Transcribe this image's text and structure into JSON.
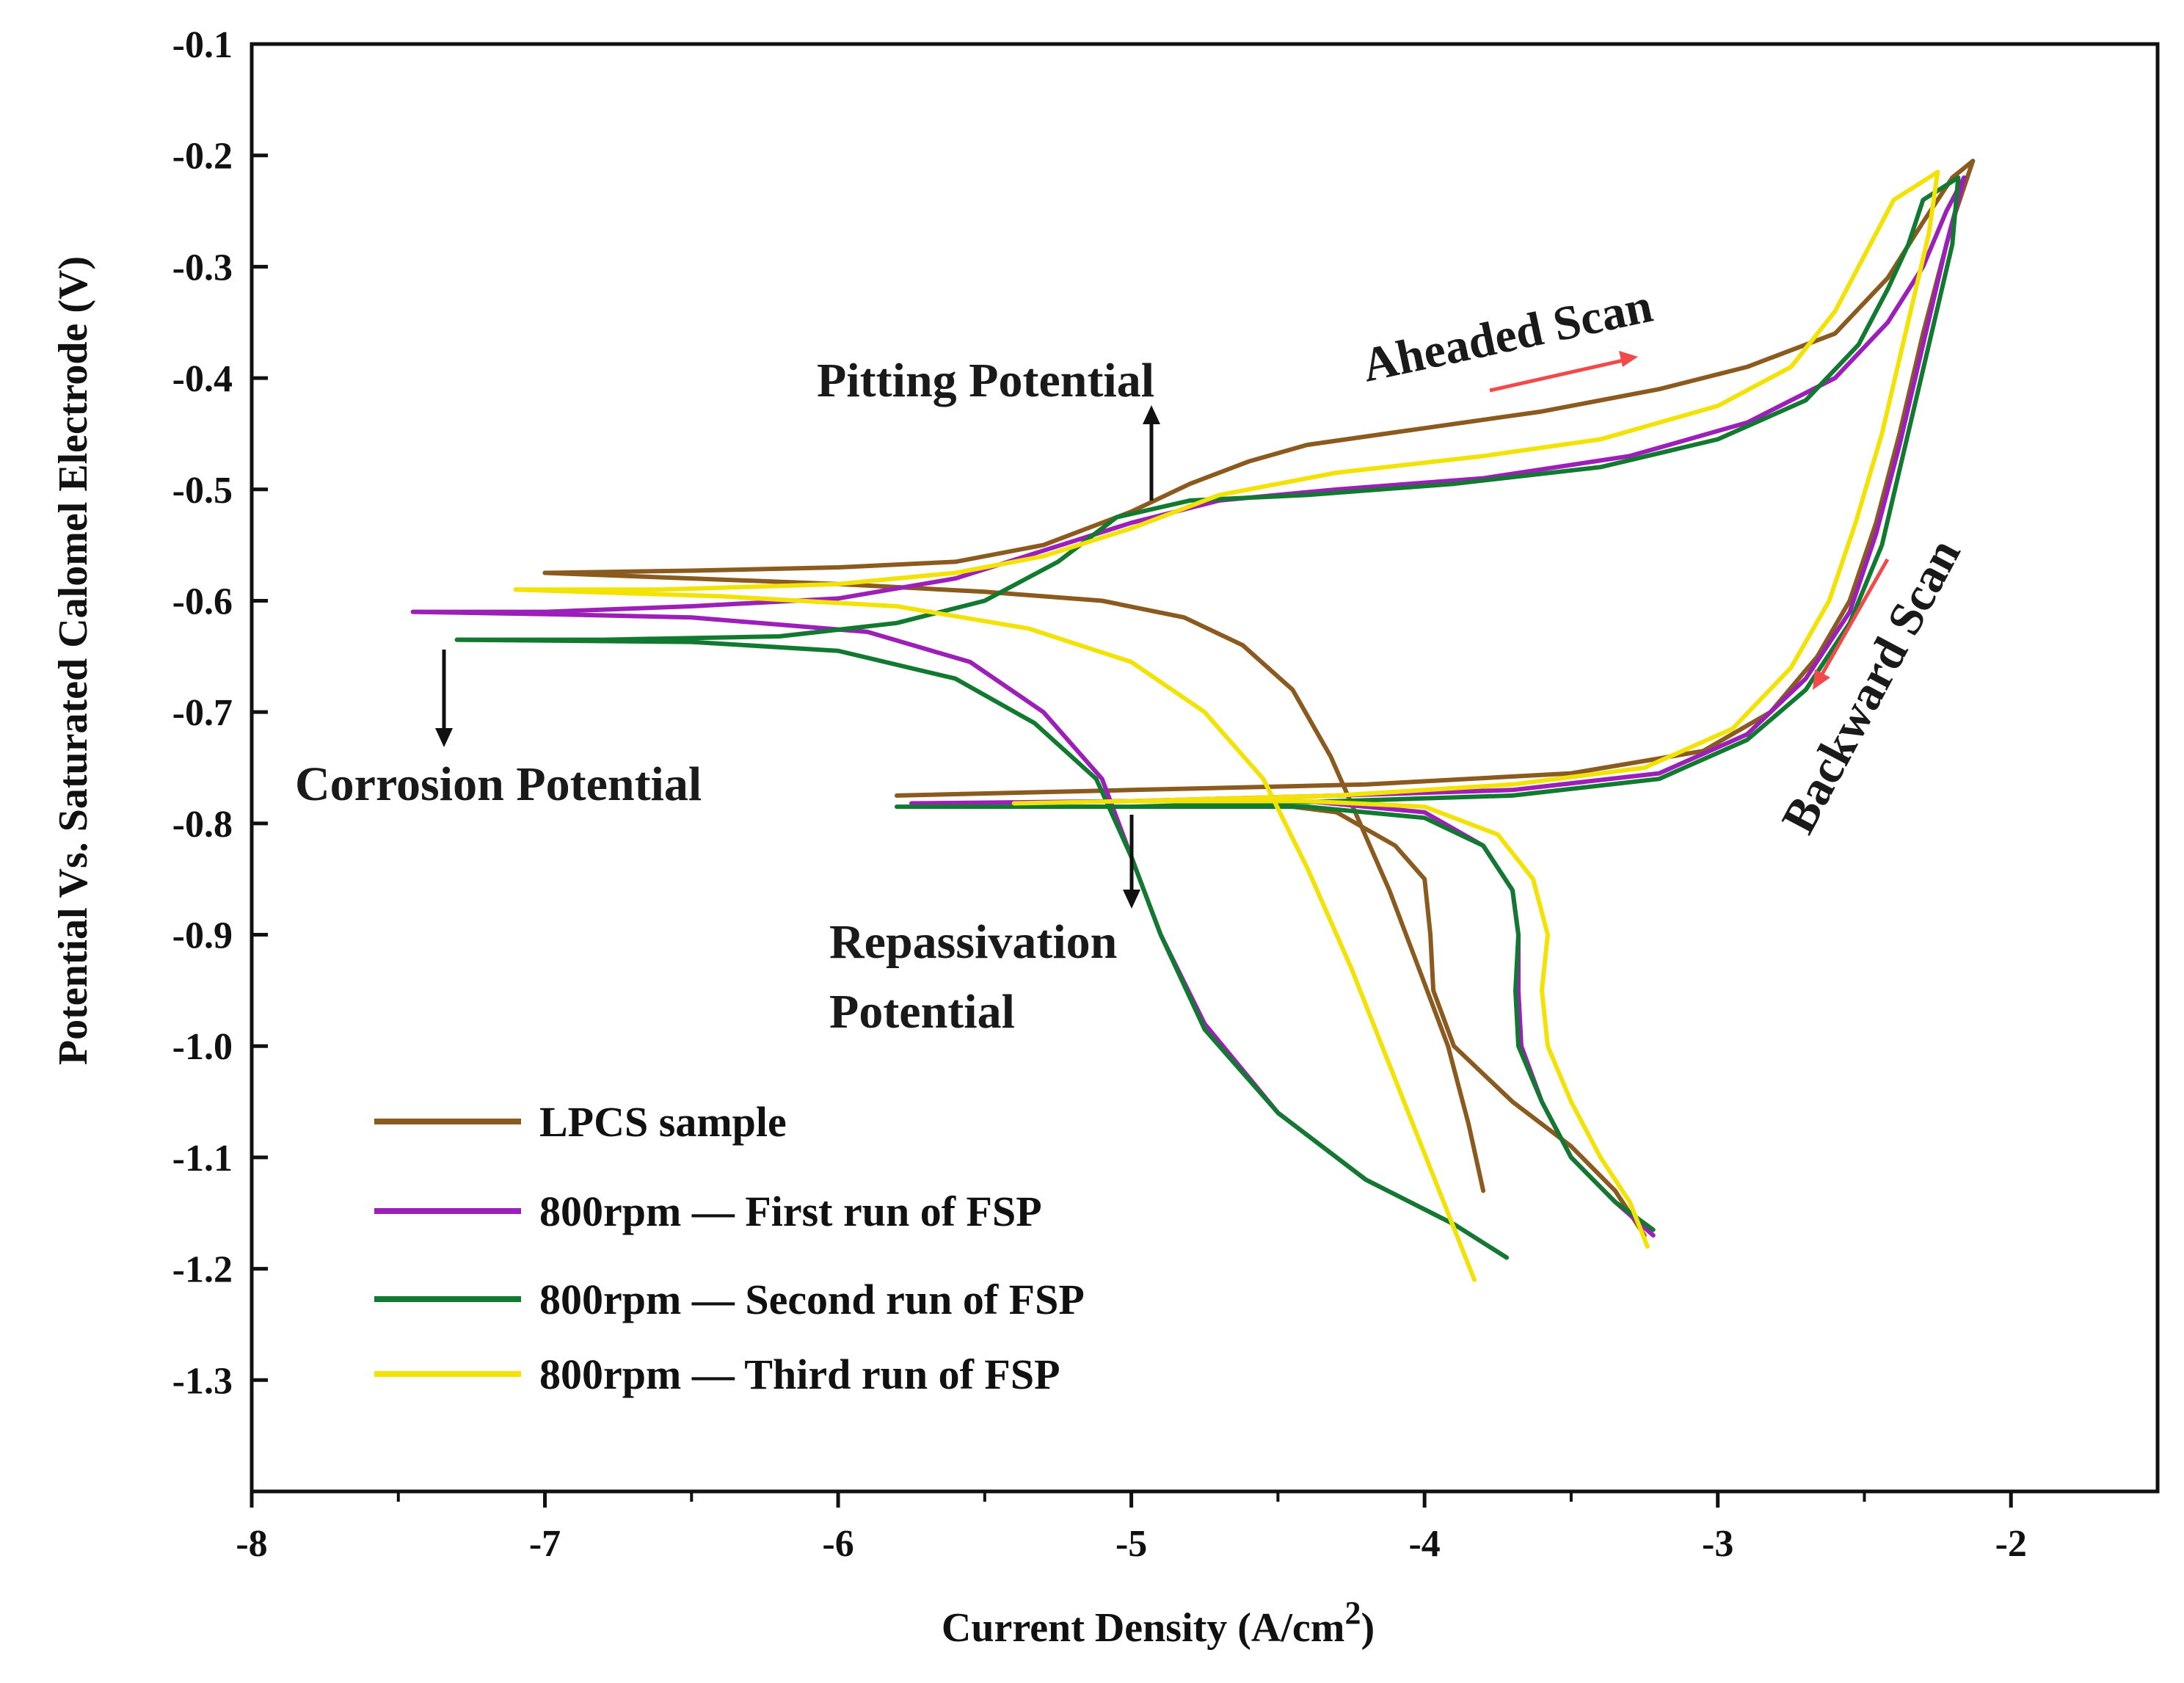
{
  "chart_data": {
    "type": "line",
    "xlabel": "Current Density (A/cm",
    "xlabel_sup": "2",
    "xlabel_end": ")",
    "ylabel": "Potential Vs. Saturated Calomel Electrode (V)",
    "xlim": [
      -8,
      -1.5
    ],
    "ylim": [
      -1.4,
      -0.1
    ],
    "x_ticks": [
      -8,
      -7,
      -6,
      -5,
      -4,
      -3,
      -2
    ],
    "x_tick_labels": [
      "-8",
      "-7",
      "-6",
      "-5",
      "-4",
      "-3",
      "-2"
    ],
    "y_ticks": [
      -0.1,
      -0.2,
      -0.3,
      -0.4,
      -0.5,
      -0.6,
      -0.7,
      -0.8,
      -0.9,
      -1.0,
      -1.1,
      -1.2,
      -1.3
    ],
    "y_tick_labels": [
      "-0.1",
      "-0.2",
      "-0.3",
      "-0.4",
      "-0.5",
      "-0.6",
      "-0.7",
      "-0.8",
      "-0.9",
      "-1.0",
      "-1.1",
      "-1.2",
      "-1.3"
    ],
    "grid": false,
    "legend_position": "bottom-left",
    "annotations": {
      "pitting": "Pitting Potential",
      "ahead_scan": "Aheaded Scan",
      "backward_scan": "Backward Scan",
      "corrosion": "Corrosion Potential",
      "repass_1": "Repassivation",
      "repass_2": "Potential"
    },
    "series": [
      {
        "name": "LPCS sample",
        "color": "#8B5A1E",
        "cathodic": [
          [
            -3.8,
            -1.13
          ],
          [
            -3.85,
            -1.07
          ],
          [
            -3.92,
            -1.0
          ],
          [
            -4.02,
            -0.93
          ],
          [
            -4.12,
            -0.86
          ],
          [
            -4.22,
            -0.8
          ],
          [
            -4.32,
            -0.74
          ],
          [
            -4.45,
            -0.68
          ],
          [
            -4.62,
            -0.64
          ],
          [
            -4.82,
            -0.615
          ],
          [
            -5.1,
            -0.6
          ],
          [
            -5.5,
            -0.592
          ],
          [
            -6.0,
            -0.585
          ],
          [
            -6.5,
            -0.58
          ],
          [
            -7.0,
            -0.575
          ]
        ],
        "anodic": [
          [
            -7.0,
            -0.575
          ],
          [
            -6.5,
            -0.573
          ],
          [
            -6.0,
            -0.57
          ],
          [
            -5.6,
            -0.565
          ],
          [
            -5.3,
            -0.55
          ],
          [
            -5.0,
            -0.52
          ],
          [
            -4.8,
            -0.495
          ],
          [
            -4.6,
            -0.475
          ],
          [
            -4.4,
            -0.46
          ],
          [
            -4.0,
            -0.445
          ],
          [
            -3.6,
            -0.43
          ],
          [
            -3.2,
            -0.41
          ],
          [
            -2.9,
            -0.39
          ],
          [
            -2.6,
            -0.36
          ],
          [
            -2.42,
            -0.31
          ],
          [
            -2.3,
            -0.26
          ],
          [
            -2.2,
            -0.22
          ],
          [
            -2.13,
            -0.205
          ]
        ],
        "reverse": [
          [
            -2.13,
            -0.205
          ],
          [
            -2.2,
            -0.26
          ],
          [
            -2.3,
            -0.36
          ],
          [
            -2.38,
            -0.45
          ],
          [
            -2.46,
            -0.53
          ],
          [
            -2.55,
            -0.6
          ],
          [
            -2.66,
            -0.65
          ],
          [
            -2.82,
            -0.7
          ],
          [
            -3.05,
            -0.735
          ],
          [
            -3.5,
            -0.755
          ],
          [
            -4.2,
            -0.765
          ],
          [
            -5.0,
            -0.77
          ],
          [
            -5.8,
            -0.775
          ]
        ],
        "tail": [
          [
            -5.0,
            -0.78
          ],
          [
            -4.6,
            -0.78
          ],
          [
            -4.3,
            -0.79
          ],
          [
            -4.1,
            -0.82
          ],
          [
            -4.0,
            -0.85
          ],
          [
            -3.98,
            -0.9
          ],
          [
            -3.97,
            -0.95
          ],
          [
            -3.9,
            -1.0
          ],
          [
            -3.7,
            -1.05
          ],
          [
            -3.5,
            -1.09
          ],
          [
            -3.35,
            -1.13
          ],
          [
            -3.25,
            -1.17
          ]
        ]
      },
      {
        "name": "800rpm — First run of FSP",
        "color": "#9B1FB8",
        "cathodic": [
          [
            -3.72,
            -1.19
          ],
          [
            -3.9,
            -1.16
          ],
          [
            -4.2,
            -1.12
          ],
          [
            -4.5,
            -1.06
          ],
          [
            -4.75,
            -0.98
          ],
          [
            -4.9,
            -0.9
          ],
          [
            -5.0,
            -0.83
          ],
          [
            -5.1,
            -0.76
          ],
          [
            -5.3,
            -0.7
          ],
          [
            -5.55,
            -0.655
          ],
          [
            -5.9,
            -0.628
          ],
          [
            -6.5,
            -0.615
          ],
          [
            -7.0,
            -0.612
          ],
          [
            -7.45,
            -0.61
          ]
        ],
        "anodic": [
          [
            -7.45,
            -0.61
          ],
          [
            -7.0,
            -0.61
          ],
          [
            -6.5,
            -0.605
          ],
          [
            -6.0,
            -0.598
          ],
          [
            -5.6,
            -0.58
          ],
          [
            -5.3,
            -0.555
          ],
          [
            -5.0,
            -0.53
          ],
          [
            -4.7,
            -0.51
          ],
          [
            -4.3,
            -0.5
          ],
          [
            -3.8,
            -0.49
          ],
          [
            -3.3,
            -0.47
          ],
          [
            -2.9,
            -0.44
          ],
          [
            -2.6,
            -0.4
          ],
          [
            -2.42,
            -0.35
          ],
          [
            -2.3,
            -0.3
          ],
          [
            -2.22,
            -0.25
          ],
          [
            -2.16,
            -0.22
          ]
        ],
        "reverse": [
          [
            -2.16,
            -0.22
          ],
          [
            -2.22,
            -0.28
          ],
          [
            -2.3,
            -0.37
          ],
          [
            -2.38,
            -0.46
          ],
          [
            -2.46,
            -0.54
          ],
          [
            -2.55,
            -0.61
          ],
          [
            -2.7,
            -0.67
          ],
          [
            -2.9,
            -0.72
          ],
          [
            -3.2,
            -0.755
          ],
          [
            -3.7,
            -0.77
          ],
          [
            -4.3,
            -0.775
          ],
          [
            -5.0,
            -0.78
          ],
          [
            -5.75,
            -0.782
          ]
        ],
        "tail": [
          [
            -5.0,
            -0.78
          ],
          [
            -4.4,
            -0.78
          ],
          [
            -4.0,
            -0.79
          ],
          [
            -3.8,
            -0.82
          ],
          [
            -3.7,
            -0.86
          ],
          [
            -3.68,
            -0.9
          ],
          [
            -3.68,
            -0.95
          ],
          [
            -3.67,
            -1.0
          ],
          [
            -3.6,
            -1.05
          ],
          [
            -3.5,
            -1.1
          ],
          [
            -3.35,
            -1.14
          ],
          [
            -3.22,
            -1.17
          ]
        ]
      },
      {
        "name": "800rpm — Second run of FSP",
        "color": "#117A30",
        "cathodic": [
          [
            -3.72,
            -1.19
          ],
          [
            -3.9,
            -1.16
          ],
          [
            -4.2,
            -1.12
          ],
          [
            -4.5,
            -1.06
          ],
          [
            -4.75,
            -0.985
          ],
          [
            -4.9,
            -0.9
          ],
          [
            -5.0,
            -0.83
          ],
          [
            -5.12,
            -0.76
          ],
          [
            -5.33,
            -0.71
          ],
          [
            -5.6,
            -0.67
          ],
          [
            -6.0,
            -0.645
          ],
          [
            -6.5,
            -0.637
          ],
          [
            -7.3,
            -0.635
          ]
        ],
        "anodic": [
          [
            -7.3,
            -0.635
          ],
          [
            -6.8,
            -0.635
          ],
          [
            -6.2,
            -0.632
          ],
          [
            -5.8,
            -0.62
          ],
          [
            -5.5,
            -0.6
          ],
          [
            -5.25,
            -0.565
          ],
          [
            -5.05,
            -0.525
          ],
          [
            -4.8,
            -0.51
          ],
          [
            -4.4,
            -0.505
          ],
          [
            -3.9,
            -0.495
          ],
          [
            -3.4,
            -0.48
          ],
          [
            -3.0,
            -0.455
          ],
          [
            -2.7,
            -0.42
          ],
          [
            -2.52,
            -0.37
          ],
          [
            -2.42,
            -0.32
          ],
          [
            -2.35,
            -0.28
          ],
          [
            -2.3,
            -0.24
          ],
          [
            -2.18,
            -0.22
          ]
        ],
        "reverse": [
          [
            -2.18,
            -0.22
          ],
          [
            -2.2,
            -0.28
          ],
          [
            -2.28,
            -0.37
          ],
          [
            -2.36,
            -0.46
          ],
          [
            -2.44,
            -0.55
          ],
          [
            -2.55,
            -0.62
          ],
          [
            -2.7,
            -0.68
          ],
          [
            -2.9,
            -0.725
          ],
          [
            -3.2,
            -0.76
          ],
          [
            -3.7,
            -0.775
          ],
          [
            -4.3,
            -0.78
          ],
          [
            -5.0,
            -0.785
          ],
          [
            -5.8,
            -0.785
          ]
        ],
        "tail": [
          [
            -5.0,
            -0.785
          ],
          [
            -4.4,
            -0.785
          ],
          [
            -4.0,
            -0.795
          ],
          [
            -3.8,
            -0.82
          ],
          [
            -3.7,
            -0.86
          ],
          [
            -3.68,
            -0.9
          ],
          [
            -3.69,
            -0.95
          ],
          [
            -3.68,
            -1.0
          ],
          [
            -3.6,
            -1.05
          ],
          [
            -3.5,
            -1.1
          ],
          [
            -3.35,
            -1.14
          ],
          [
            -3.22,
            -1.165
          ]
        ]
      },
      {
        "name": "800rpm — Third run of FSP",
        "color": "#F2E205",
        "cathodic": [
          [
            -3.83,
            -1.21
          ],
          [
            -3.95,
            -1.13
          ],
          [
            -4.1,
            -1.03
          ],
          [
            -4.25,
            -0.93
          ],
          [
            -4.4,
            -0.84
          ],
          [
            -4.55,
            -0.76
          ],
          [
            -4.75,
            -0.7
          ],
          [
            -5.0,
            -0.655
          ],
          [
            -5.35,
            -0.625
          ],
          [
            -5.8,
            -0.605
          ],
          [
            -6.4,
            -0.596
          ],
          [
            -7.1,
            -0.59
          ]
        ],
        "anodic": [
          [
            -7.1,
            -0.59
          ],
          [
            -6.6,
            -0.59
          ],
          [
            -6.0,
            -0.585
          ],
          [
            -5.6,
            -0.575
          ],
          [
            -5.3,
            -0.56
          ],
          [
            -5.0,
            -0.535
          ],
          [
            -4.7,
            -0.505
          ],
          [
            -4.3,
            -0.485
          ],
          [
            -3.8,
            -0.47
          ],
          [
            -3.4,
            -0.455
          ],
          [
            -3.0,
            -0.425
          ],
          [
            -2.75,
            -0.39
          ],
          [
            -2.6,
            -0.34
          ],
          [
            -2.5,
            -0.29
          ],
          [
            -2.4,
            -0.24
          ],
          [
            -2.25,
            -0.215
          ]
        ],
        "reverse": [
          [
            -2.25,
            -0.215
          ],
          [
            -2.28,
            -0.27
          ],
          [
            -2.36,
            -0.36
          ],
          [
            -2.44,
            -0.45
          ],
          [
            -2.53,
            -0.53
          ],
          [
            -2.62,
            -0.6
          ],
          [
            -2.75,
            -0.66
          ],
          [
            -2.95,
            -0.715
          ],
          [
            -3.25,
            -0.75
          ],
          [
            -3.7,
            -0.765
          ],
          [
            -4.3,
            -0.775
          ],
          [
            -5.0,
            -0.78
          ],
          [
            -5.4,
            -0.782
          ]
        ],
        "tail": [
          [
            -5.0,
            -0.78
          ],
          [
            -4.4,
            -0.78
          ],
          [
            -4.0,
            -0.785
          ],
          [
            -3.75,
            -0.81
          ],
          [
            -3.63,
            -0.85
          ],
          [
            -3.58,
            -0.9
          ],
          [
            -3.6,
            -0.95
          ],
          [
            -3.58,
            -1.0
          ],
          [
            -3.5,
            -1.05
          ],
          [
            -3.4,
            -1.1
          ],
          [
            -3.3,
            -1.14
          ],
          [
            -3.24,
            -1.18
          ]
        ]
      }
    ]
  }
}
